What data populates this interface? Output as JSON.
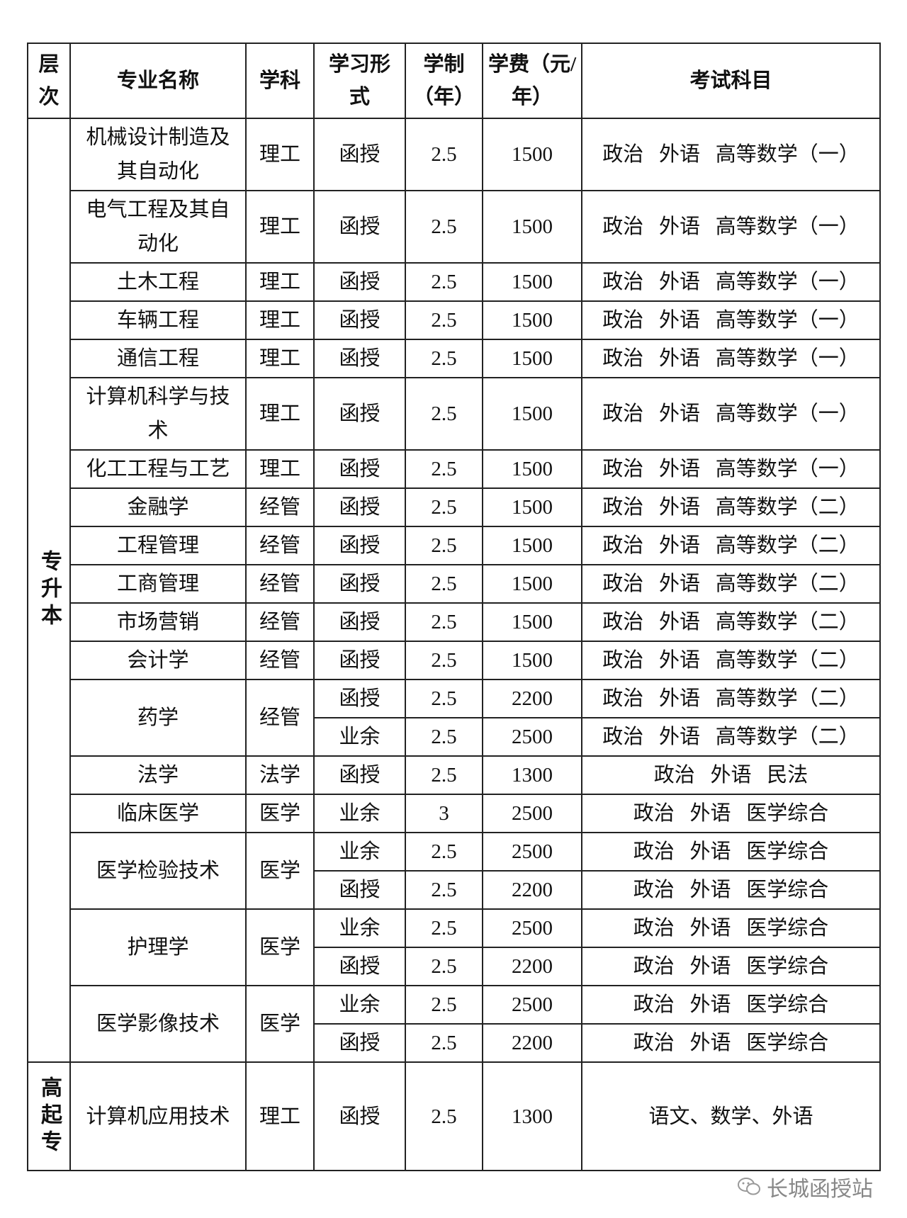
{
  "table": {
    "header": [
      [
        "层",
        "次"
      ],
      [
        "专业名称"
      ],
      [
        "学科"
      ],
      [
        "学习形",
        "式"
      ],
      [
        "学制",
        "（年）"
      ],
      [
        "学费（元/",
        "年）"
      ],
      [
        "考试科目"
      ]
    ],
    "levels": [
      {
        "label": "专升本",
        "majors": [
          {
            "name": "机械设计制造及其自动化",
            "subject": "理工",
            "rows": [
              {
                "form": "函授",
                "years": 2.5,
                "fee": 1500,
                "exam": "政治   外语   高等数学（一）"
              }
            ]
          },
          {
            "name": "电气工程及其自动化",
            "subject": "理工",
            "rows": [
              {
                "form": "函授",
                "years": 2.5,
                "fee": 1500,
                "exam": "政治   外语   高等数学（一）"
              }
            ]
          },
          {
            "name": "土木工程",
            "subject": "理工",
            "rows": [
              {
                "form": "函授",
                "years": 2.5,
                "fee": 1500,
                "exam": "政治   外语   高等数学（一）"
              }
            ]
          },
          {
            "name": "车辆工程",
            "subject": "理工",
            "rows": [
              {
                "form": "函授",
                "years": 2.5,
                "fee": 1500,
                "exam": "政治   外语   高等数学（一）"
              }
            ]
          },
          {
            "name": "通信工程",
            "subject": "理工",
            "rows": [
              {
                "form": "函授",
                "years": 2.5,
                "fee": 1500,
                "exam": "政治   外语   高等数学（一）"
              }
            ]
          },
          {
            "name": "计算机科学与技术",
            "subject": "理工",
            "rows": [
              {
                "form": "函授",
                "years": 2.5,
                "fee": 1500,
                "exam": "政治   外语   高等数学（一）"
              }
            ]
          },
          {
            "name": "化工工程与工艺",
            "subject": "理工",
            "rows": [
              {
                "form": "函授",
                "years": 2.5,
                "fee": 1500,
                "exam": "政治   外语   高等数学（一）"
              }
            ]
          },
          {
            "name": "金融学",
            "subject": "经管",
            "rows": [
              {
                "form": "函授",
                "years": 2.5,
                "fee": 1500,
                "exam": "政治   外语   高等数学（二）"
              }
            ]
          },
          {
            "name": "工程管理",
            "subject": "经管",
            "rows": [
              {
                "form": "函授",
                "years": 2.5,
                "fee": 1500,
                "exam": "政治   外语   高等数学（二）"
              }
            ]
          },
          {
            "name": "工商管理",
            "subject": "经管",
            "rows": [
              {
                "form": "函授",
                "years": 2.5,
                "fee": 1500,
                "exam": "政治   外语   高等数学（二）"
              }
            ]
          },
          {
            "name": "市场营销",
            "subject": "经管",
            "rows": [
              {
                "form": "函授",
                "years": 2.5,
                "fee": 1500,
                "exam": "政治   外语   高等数学（二）"
              }
            ]
          },
          {
            "name": "会计学",
            "subject": "经管",
            "rows": [
              {
                "form": "函授",
                "years": 2.5,
                "fee": 1500,
                "exam": "政治   外语   高等数学（二）"
              }
            ]
          },
          {
            "name": "药学",
            "subject": "经管",
            "rows": [
              {
                "form": "函授",
                "years": 2.5,
                "fee": 2200,
                "exam": "政治   外语   高等数学（二）"
              },
              {
                "form": "业余",
                "years": 2.5,
                "fee": 2500,
                "exam": "政治   外语   高等数学（二）"
              }
            ]
          },
          {
            "name": "法学",
            "subject": "法学",
            "rows": [
              {
                "form": "函授",
                "years": 2.5,
                "fee": 1300,
                "exam": "政治   外语   民法"
              }
            ]
          },
          {
            "name": "临床医学",
            "subject": "医学",
            "rows": [
              {
                "form": "业余",
                "years": 3,
                "fee": 2500,
                "exam": "政治   外语   医学综合"
              }
            ]
          },
          {
            "name": "医学检验技术",
            "subject": "医学",
            "rows": [
              {
                "form": "业余",
                "years": 2.5,
                "fee": 2500,
                "exam": "政治   外语   医学综合"
              },
              {
                "form": "函授",
                "years": 2.5,
                "fee": 2200,
                "exam": "政治   外语   医学综合"
              }
            ]
          },
          {
            "name": "护理学",
            "subject": "医学",
            "rows": [
              {
                "form": "业余",
                "years": 2.5,
                "fee": 2500,
                "exam": "政治   外语   医学综合"
              },
              {
                "form": "函授",
                "years": 2.5,
                "fee": 2200,
                "exam": "政治   外语   医学综合"
              }
            ]
          },
          {
            "name": "医学影像技术",
            "subject": "医学",
            "rows": [
              {
                "form": "业余",
                "years": 2.5,
                "fee": 2500,
                "exam": "政治   外语   医学综合"
              },
              {
                "form": "函授",
                "years": 2.5,
                "fee": 2200,
                "exam": "政治   外语   医学综合"
              }
            ]
          }
        ]
      },
      {
        "label": "高起专",
        "majors": [
          {
            "name": "计算机应用技术",
            "subject": "理工",
            "rows": [
              {
                "form": "函授",
                "years": 2.5,
                "fee": 1300,
                "exam": "语文、数学、外语"
              }
            ]
          }
        ]
      }
    ]
  },
  "watermark": "长城函授站"
}
